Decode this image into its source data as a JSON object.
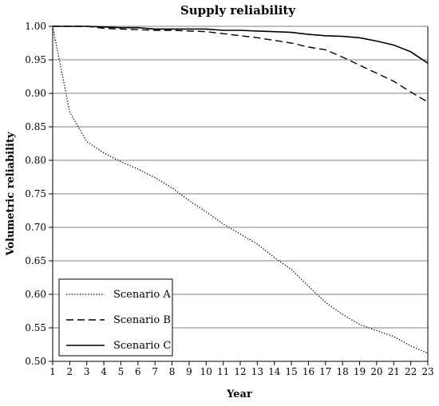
{
  "chart_data": {
    "type": "line",
    "title": "Supply  reliability",
    "xlabel": "Year",
    "ylabel": "Volumetric reliability",
    "xlim": [
      1,
      23
    ],
    "ylim": [
      0.5,
      1.0
    ],
    "yticks": [
      0.5,
      0.55,
      0.6,
      0.65,
      0.7,
      0.75,
      0.8,
      0.85,
      0.9,
      0.95,
      1.0
    ],
    "ytick_labels": [
      "0.50",
      "0.55",
      "0.60",
      "0.65",
      "0.70",
      "0.75",
      "0.80",
      "0.85",
      "0.90",
      "0.95",
      "1.00"
    ],
    "x": [
      1,
      2,
      3,
      4,
      5,
      6,
      7,
      8,
      9,
      10,
      11,
      12,
      13,
      14,
      15,
      16,
      17,
      18,
      19,
      20,
      21,
      22,
      23
    ],
    "grid": {
      "horizontal": true,
      "vertical": false
    },
    "legend_position": "bottom-left",
    "series": [
      {
        "name": "Scenario A",
        "style": "dotted",
        "color": "#000000",
        "values": [
          1.0,
          0.872,
          0.828,
          0.811,
          0.798,
          0.787,
          0.774,
          0.759,
          0.74,
          0.723,
          0.705,
          0.69,
          0.675,
          0.655,
          0.637,
          0.612,
          0.588,
          0.57,
          0.555,
          0.546,
          0.537,
          0.523,
          0.512
        ]
      },
      {
        "name": "Scenario B",
        "style": "dashed",
        "color": "#000000",
        "values": [
          1.0,
          1.0,
          1.0,
          0.997,
          0.996,
          0.995,
          0.994,
          0.994,
          0.993,
          0.992,
          0.989,
          0.986,
          0.983,
          0.979,
          0.975,
          0.969,
          0.965,
          0.954,
          0.942,
          0.93,
          0.918,
          0.902,
          0.887
        ]
      },
      {
        "name": "Scenario C",
        "style": "solid",
        "color": "#000000",
        "values": [
          1.0,
          1.0,
          1.0,
          0.999,
          0.998,
          0.998,
          0.996,
          0.996,
          0.996,
          0.996,
          0.994,
          0.994,
          0.993,
          0.992,
          0.991,
          0.988,
          0.986,
          0.985,
          0.983,
          0.978,
          0.972,
          0.962,
          0.945
        ]
      }
    ]
  }
}
